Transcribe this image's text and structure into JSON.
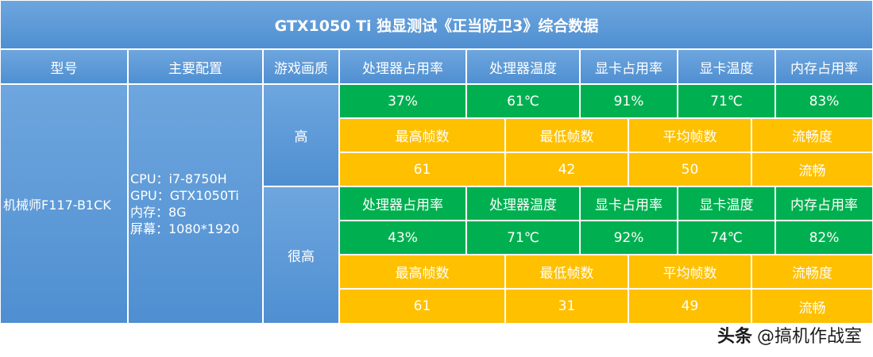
{
  "title": "GTX1050 Ti 独显测试《正当防卫3》综合数据",
  "headers": {
    "model": "型号",
    "config": "主要配置",
    "quality": "游戏画质",
    "cpu_usage": "处理器占用率",
    "cpu_temp": "处理器温度",
    "gpu_usage": "显卡占用率",
    "gpu_temp": "显卡温度",
    "mem_usage": "内存占用率"
  },
  "fps_headers": {
    "max_fps": "最高帧数",
    "min_fps": "最低帧数",
    "avg_fps": "平均帧数",
    "smoothness": "流畅度"
  },
  "model": "机械师F117-B1CK",
  "config": {
    "cpu": "CPU：i7-8750H",
    "gpu": "GPU：GTX1050Ti",
    "memory": "内存：8G",
    "screen": "屏幕：1080*1920"
  },
  "rows": [
    {
      "quality": "高",
      "cpu_usage": "37%",
      "cpu_temp": "61℃",
      "gpu_usage": "91%",
      "gpu_temp": "71℃",
      "mem_usage": "83%",
      "max_fps": "61",
      "min_fps": "42",
      "avg_fps": "50",
      "smoothness": "流畅"
    },
    {
      "quality": "很高",
      "cpu_usage": "43%",
      "cpu_temp": "71℃",
      "gpu_usage": "92%",
      "gpu_temp": "74℃",
      "mem_usage": "82%",
      "max_fps": "61",
      "min_fps": "31",
      "avg_fps": "49",
      "smoothness": "流畅"
    }
  ],
  "watermark": {
    "brand": "头条",
    "handle": "@搞机作战室"
  },
  "colors": {
    "blue": "#5b98d8",
    "green": "#00b050",
    "yellow": "#ffc000",
    "border": "#ffffff"
  }
}
